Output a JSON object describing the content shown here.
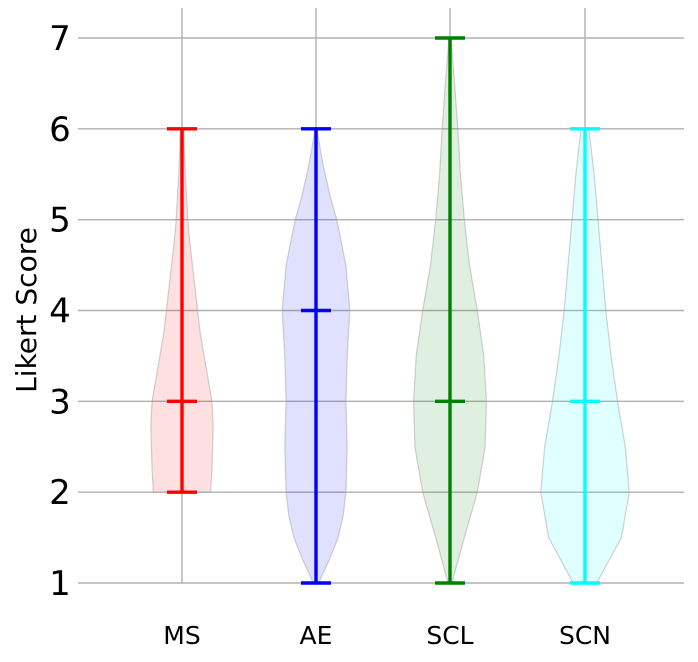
{
  "chart_data": {
    "type": "violin",
    "ylabel": "Likert Score",
    "ylim": [
      1,
      7
    ],
    "yticks": [
      "1",
      "2",
      "3",
      "4",
      "5",
      "6",
      "7"
    ],
    "grid": true,
    "categories": [
      "MS",
      "AE",
      "SCL",
      "SCN"
    ],
    "series": [
      {
        "name": "MS",
        "color": "#ff0000",
        "min": 2,
        "median": 3,
        "max": 6,
        "density": [
          [
            2,
            0.22
          ],
          [
            2.25,
            0.23
          ],
          [
            2.5,
            0.235
          ],
          [
            2.75,
            0.24
          ],
          [
            3,
            0.23
          ],
          [
            3.25,
            0.2
          ],
          [
            3.5,
            0.17
          ],
          [
            3.75,
            0.14
          ],
          [
            4,
            0.12
          ],
          [
            4.25,
            0.1
          ],
          [
            4.5,
            0.08
          ],
          [
            4.75,
            0.06
          ],
          [
            5,
            0.045
          ],
          [
            5.25,
            0.035
          ],
          [
            5.5,
            0.025
          ],
          [
            5.75,
            0.018
          ],
          [
            6,
            0.012
          ]
        ]
      },
      {
        "name": "AE",
        "color": "#0000ff",
        "min": 1,
        "median": 4,
        "max": 6,
        "density": [
          [
            1,
            0.02
          ],
          [
            1.25,
            0.1
          ],
          [
            1.5,
            0.17
          ],
          [
            1.75,
            0.21
          ],
          [
            2,
            0.23
          ],
          [
            2.5,
            0.24
          ],
          [
            3,
            0.23
          ],
          [
            3.5,
            0.24
          ],
          [
            4,
            0.26
          ],
          [
            4.5,
            0.23
          ],
          [
            5,
            0.16
          ],
          [
            5.25,
            0.11
          ],
          [
            5.5,
            0.07
          ],
          [
            5.75,
            0.035
          ],
          [
            6,
            0.008
          ]
        ]
      },
      {
        "name": "SCL",
        "color": "#008000",
        "min": 1,
        "median": 3,
        "max": 7,
        "density": [
          [
            1,
            0.015
          ],
          [
            1.5,
            0.11
          ],
          [
            2,
            0.21
          ],
          [
            2.5,
            0.27
          ],
          [
            3,
            0.28
          ],
          [
            3.5,
            0.26
          ],
          [
            4,
            0.21
          ],
          [
            4.5,
            0.15
          ],
          [
            5,
            0.11
          ],
          [
            5.5,
            0.08
          ],
          [
            6,
            0.06
          ],
          [
            6.5,
            0.035
          ],
          [
            7,
            0.008
          ]
        ]
      },
      {
        "name": "SCN",
        "color": "#00ffff",
        "min": 1,
        "median": 3,
        "max": 6,
        "density": [
          [
            1,
            0.09
          ],
          [
            1.5,
            0.28
          ],
          [
            2,
            0.34
          ],
          [
            2.5,
            0.31
          ],
          [
            3,
            0.25
          ],
          [
            3.5,
            0.2
          ],
          [
            4,
            0.16
          ],
          [
            4.5,
            0.13
          ],
          [
            5,
            0.1
          ],
          [
            5.5,
            0.07
          ],
          [
            6,
            0.03
          ]
        ]
      }
    ]
  }
}
